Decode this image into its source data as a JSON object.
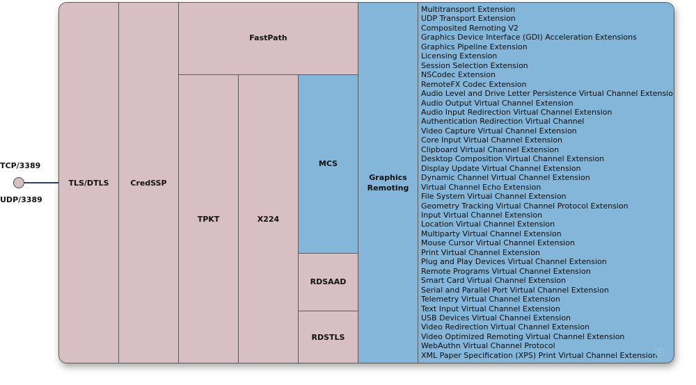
{
  "ports": {
    "tcp": "TCP/3389",
    "udp": "UDP/3389"
  },
  "layers": {
    "tls": "TLS/DTLS",
    "credssp": "CredSSP",
    "fastpath": "FastPath",
    "tpkt": "TPKT",
    "x224": "X224",
    "mcs": "MCS",
    "rdsaad": "RDSAAD",
    "rdstls": "RDSTLS",
    "graphics": "Graphics Remoting"
  },
  "extensions": [
    "Multitransport Extension",
    "UDP Transport Extension",
    "Composited Remoting V2",
    "Graphics Device Interface (GDI) Acceleration Extensions",
    "Graphics Pipeline Extension",
    "Licensing Extension",
    "Session Selection Extension",
    "NSCodec Extension",
    "RemoteFX Codec Extension",
    "Audio Level and Drive Letter Persistence Virtual Channel Extension",
    "Audio Output Virtual Channel Extension",
    "Audio Input Redirection Virtual Channel Extension",
    "Authentication Redirection Virtual Channel",
    "Video Capture Virtual Channel Extension",
    "Core Input Virtual Channel Extension",
    "Clipboard Virtual Channel Extension",
    "Desktop Composition Virtual Channel Extension",
    "Display Update Virtual Channel Extension",
    "Dynamic Channel Virtual Channel Extension",
    "Virtual Channel Echo Extension",
    "File System Virtual Channel Extension",
    "Geometry Tracking Virtual Channel Protocol Extension",
    "Input Virtual Channel Extension",
    "Location Virtual Channel Extension",
    "Multiparty Virtual Channel Extension",
    "Mouse Cursor Virtual Channel Extension",
    "Print Virtual Channel Extension",
    "Plug and Play Devices Virtual Channel Extension",
    "Remote Programs Virtual Channel Extension",
    "Smart Card Virtual Channel Extension",
    "Serial and Parallel Port Virtual Channel Extension",
    "Telemetry Virtual Channel Extension",
    "Text Input Virtual Channel Extension",
    "USB Devices Virtual Channel Extension",
    "Video Redirection Virtual Channel Extension",
    "Video Optimized Remoting Virtual Channel Extension",
    "WebAuthn Virtual Channel Protocol",
    "XML Paper Specification (XPS) Print Virtual Channel Extension"
  ],
  "colors": {
    "transport_layer": "#d7bfc4",
    "protocol_layer": "#84b6da",
    "border": "#5a5a5a"
  },
  "logo_icon": "s-logo-icon"
}
